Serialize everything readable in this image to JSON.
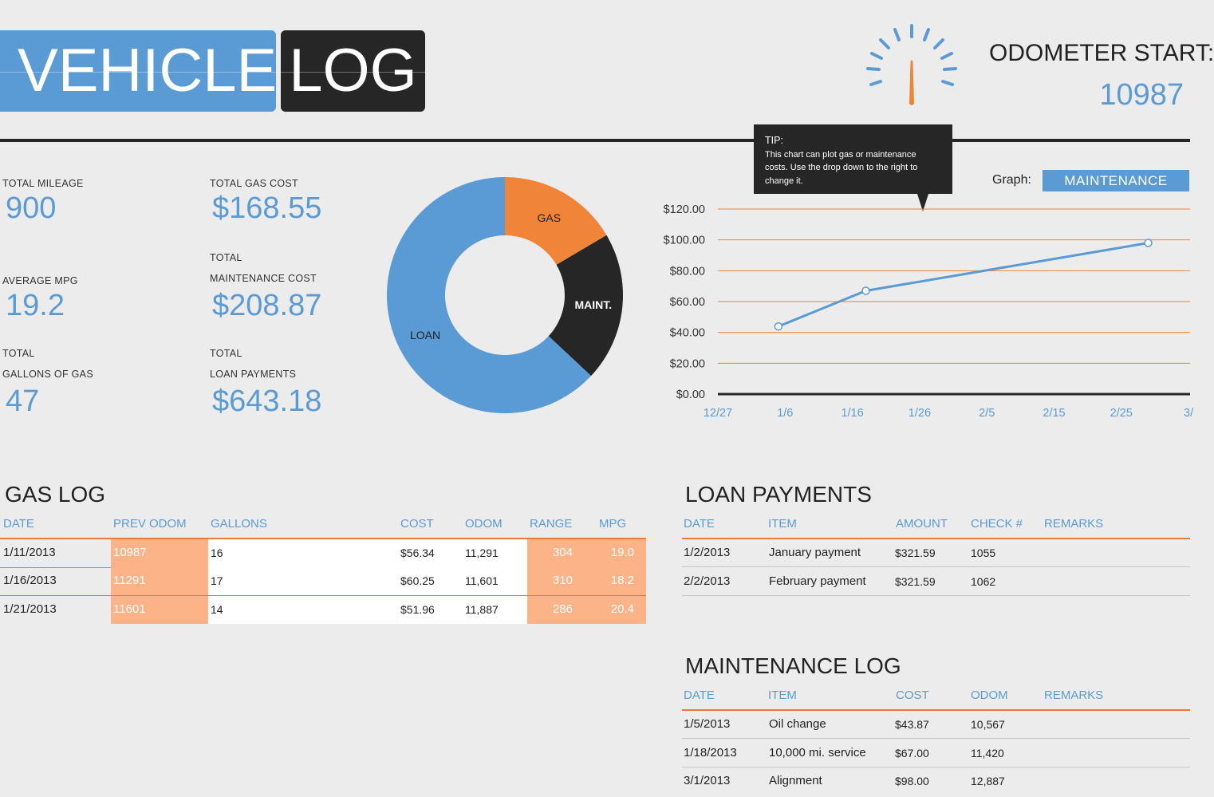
{
  "header": {
    "title_part1": "VEHICLE",
    "title_part2": "LOG",
    "odometer_label": "ODOMETER START:",
    "odometer_value": "10987"
  },
  "stats": {
    "total_mileage_label": "TOTAL MILEAGE",
    "total_mileage": "900",
    "average_mpg_label": "AVERAGE MPG",
    "average_mpg": "19.2",
    "total_gallons_label1": "TOTAL",
    "total_gallons_label2": "GALLONS OF GAS",
    "total_gallons": "47",
    "total_gas_cost_label": "TOTAL GAS COST",
    "total_gas_cost": "$168.55",
    "total_maint_label1": "TOTAL",
    "total_maint_label2": "MAINTENANCE COST",
    "total_maint_cost": "$208.87",
    "total_loan_label1": "TOTAL",
    "total_loan_label2": "LOAN PAYMENTS",
    "total_loan_payments": "$643.18"
  },
  "tip": {
    "heading": "TIP:",
    "text": "This chart can plot gas or maintenance costs. Use the  drop down to the right  to change it."
  },
  "graph_control": {
    "label": "Graph:",
    "selected": "MAINTENANCE"
  },
  "chart_data": [
    {
      "type": "pie",
      "labels": [
        "GAS",
        "MAINT.",
        "LOAN"
      ],
      "values": [
        168.55,
        208.87,
        643.18
      ],
      "colors": [
        "#f0853a",
        "#262626",
        "#5b9bd5"
      ]
    },
    {
      "type": "line",
      "x": [
        "1/5/2013",
        "1/18/2013",
        "3/1/2013"
      ],
      "y": [
        43.87,
        67.0,
        98.0
      ],
      "ylim": [
        0,
        120
      ],
      "yticks": [
        "$0.00",
        "$20.00",
        "$40.00",
        "$60.00",
        "$80.00",
        "$100.00",
        "$120.00"
      ],
      "xticks": [
        "12/27",
        "1/6",
        "1/16",
        "1/26",
        "2/5",
        "2/15",
        "2/25",
        "3/"
      ],
      "grid": true,
      "line_color": "#5b9bd5",
      "grid_color": "#f0853a"
    }
  ],
  "gas_log": {
    "title": "GAS LOG",
    "headers": [
      "DATE",
      "PREV ODOM",
      "GALLONS",
      "COST",
      "ODOM",
      "RANGE",
      "MPG"
    ],
    "rows": [
      [
        "1/11/2013",
        "10987",
        "16",
        "$56.34",
        "11,291",
        "304",
        "19.0"
      ],
      [
        "1/16/2013",
        "11291",
        "17",
        "$60.25",
        "11,601",
        "310",
        "18.2"
      ],
      [
        "1/21/2013",
        "11601",
        "14",
        "$51.96",
        "11,887",
        "286",
        "20.4"
      ]
    ]
  },
  "loan_payments": {
    "title": "LOAN PAYMENTS",
    "headers": [
      "DATE",
      "ITEM",
      "AMOUNT",
      "CHECK #",
      "REMARKS"
    ],
    "rows": [
      [
        "1/2/2013",
        "January payment",
        "$321.59",
        "1055",
        ""
      ],
      [
        "2/2/2013",
        "February payment",
        "$321.59",
        "1062",
        ""
      ]
    ]
  },
  "maintenance_log": {
    "title": "MAINTENANCE LOG",
    "headers": [
      "DATE",
      "ITEM",
      "COST",
      "ODOM",
      "REMARKS"
    ],
    "rows": [
      [
        "1/5/2013",
        "Oil change",
        "$43.87",
        "10,567",
        ""
      ],
      [
        "1/18/2013",
        "10,000 mi. service",
        "$67.00",
        "11,420",
        ""
      ],
      [
        "3/1/2013",
        "Alignment",
        "$98.00",
        "12,887",
        ""
      ]
    ]
  }
}
